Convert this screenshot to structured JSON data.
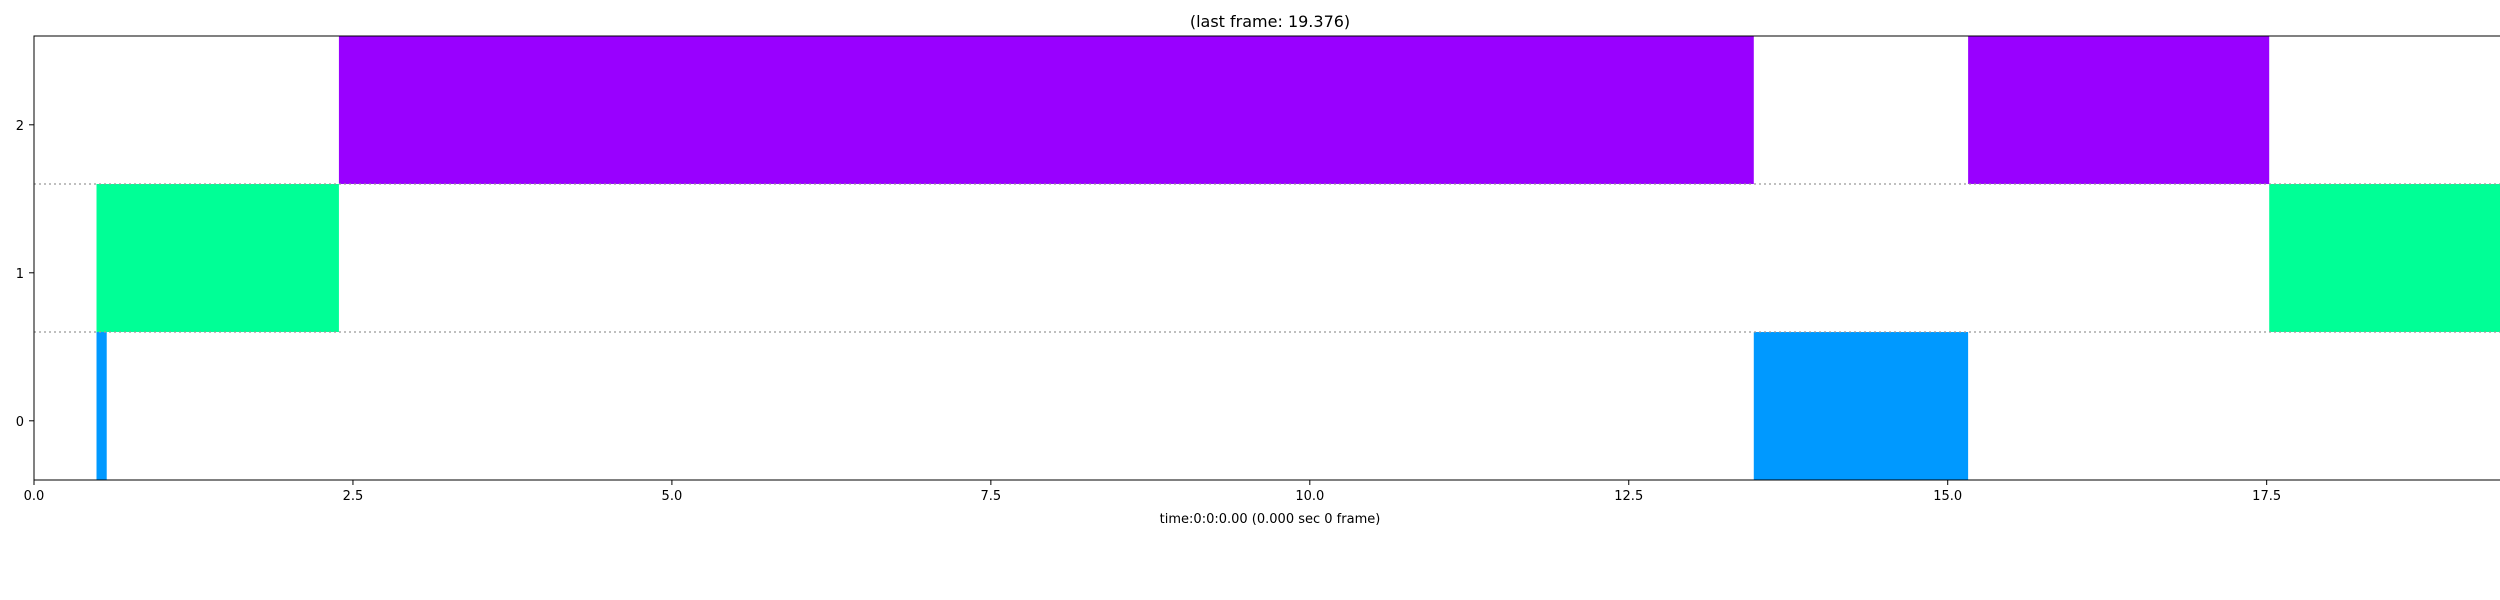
{
  "chart_data": {
    "type": "timeline",
    "title": "(last frame: 19.376)",
    "xlabel": "time:0:0:0.00 (0.000 sec 0 frame)",
    "ylabel": "",
    "xlim": [
      0,
      19.376
    ],
    "ylim": [
      -0.4,
      2.6
    ],
    "x_ticks": [
      0,
      2.5,
      5,
      7.5,
      10,
      12.5,
      15,
      17.5
    ],
    "x_tick_labels": [
      "0.0",
      "2.5",
      "5.0",
      "7.5",
      "10.0",
      "12.5",
      "15.0",
      "17.5"
    ],
    "y_ticks": [
      0,
      1,
      2
    ],
    "y_tick_labels": [
      "0",
      "1",
      "2"
    ],
    "separators": [
      0.6,
      1.6
    ],
    "segments": [
      {
        "track": 0,
        "start": 0.49,
        "end": 0.57,
        "color": "#0099ff"
      },
      {
        "track": 1,
        "start": 0.49,
        "end": 2.39,
        "color": "#00ff96"
      },
      {
        "track": 2,
        "start": 2.39,
        "end": 13.48,
        "color": "#9900ff"
      },
      {
        "track": 0,
        "start": 13.48,
        "end": 15.16,
        "color": "#0099ff"
      },
      {
        "track": 2,
        "start": 15.16,
        "end": 17.52,
        "color": "#9900ff"
      },
      {
        "track": 1,
        "start": 17.52,
        "end": 19.376,
        "color": "#00ff96"
      }
    ]
  }
}
